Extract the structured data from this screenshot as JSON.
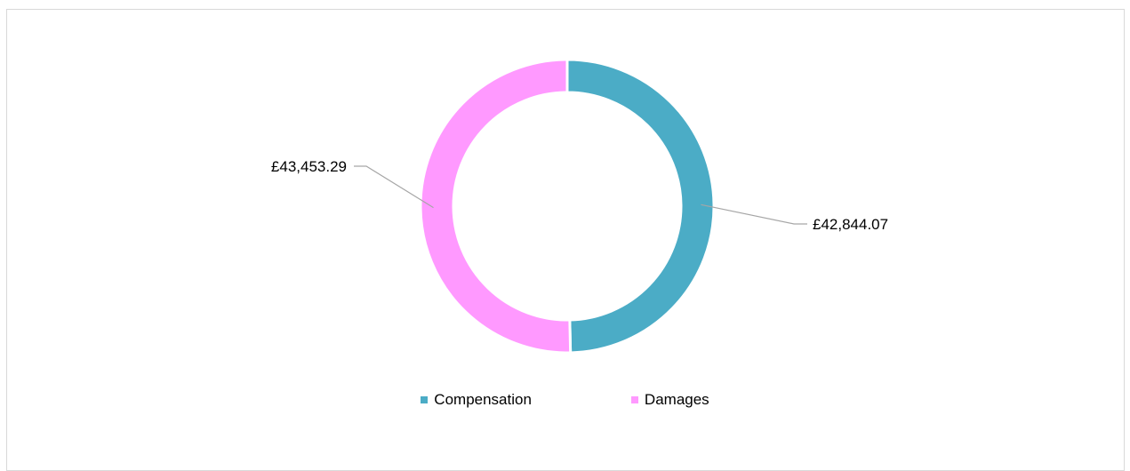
{
  "chart_data": {
    "type": "pie",
    "variant": "doughnut",
    "title": "",
    "series": [
      {
        "name": "Compensation",
        "value": 42844.07,
        "label": "£42,844.07",
        "color": "#4BACC6"
      },
      {
        "name": "Damages",
        "value": 43453.29,
        "label": "£43,453.29",
        "color": "#FF99FF"
      }
    ],
    "legend_position": "bottom",
    "grid": false
  }
}
